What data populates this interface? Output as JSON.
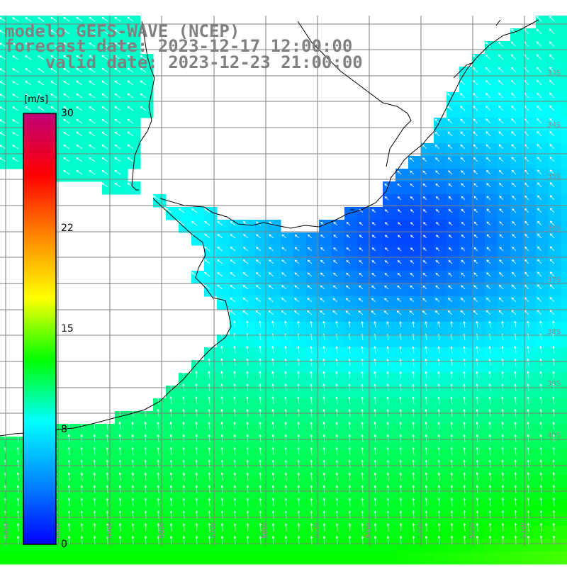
{
  "title": {
    "line1": "modelo GEFS-WAVE (NCEP)",
    "line2": "forecast date: 2023-12-17 12:00:00",
    "line3": "    valid date: 2023-12-23 21:00:00"
  },
  "colorbar": {
    "unit": "[m/s]",
    "ticks": [
      {
        "label": "30",
        "value": 30
      },
      {
        "label": "22",
        "value": 22
      },
      {
        "label": "15",
        "value": 15
      },
      {
        "label": "8",
        "value": 8
      },
      {
        "label": "0",
        "value": 0
      }
    ],
    "range": [
      0,
      30
    ],
    "colors": [
      "#0000ff",
      "#0088ff",
      "#00ffff",
      "#00ff00",
      "#ffff00",
      "#ff8800",
      "#ff0000",
      "#c0007a"
    ]
  },
  "axes": {
    "lon_labels": [
      "61W",
      "60W",
      "59W",
      "58W",
      "57W",
      "56W",
      "55W",
      "54W",
      "53W",
      "52W",
      "51W"
    ],
    "lat_labels": [
      "33S",
      "34S",
      "35S",
      "36S",
      "37S",
      "38S",
      "39S",
      "40S"
    ]
  },
  "map_colors": {
    "land": "#ffffff",
    "grid": "#7f7f7f",
    "coast": "#000000",
    "arrow": "#ffffff"
  }
}
